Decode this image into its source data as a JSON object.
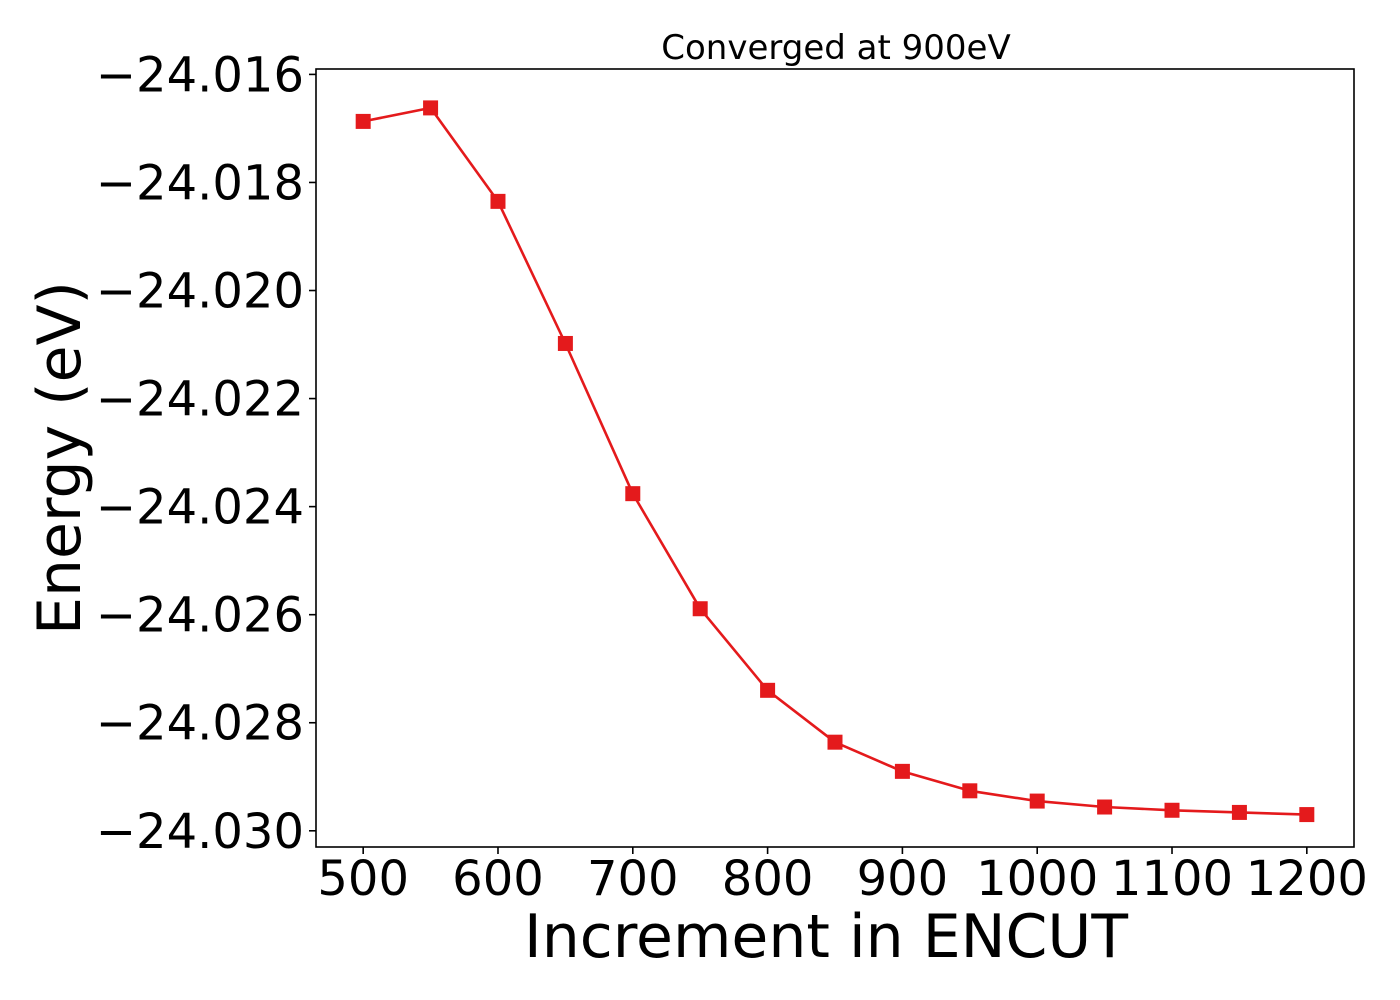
{
  "chart_data": {
    "type": "line",
    "title": "Converged at 900eV",
    "xlabel": "Increment in ENCUT",
    "ylabel": "Energy (eV)",
    "xlim": [
      465,
      1235
    ],
    "ylim": [
      -24.0303,
      -24.0159
    ],
    "x_ticks": [
      {
        "value": 500,
        "label": "500"
      },
      {
        "value": 600,
        "label": "600"
      },
      {
        "value": 700,
        "label": "700"
      },
      {
        "value": 800,
        "label": "800"
      },
      {
        "value": 900,
        "label": "900"
      },
      {
        "value": 1000,
        "label": "1000"
      },
      {
        "value": 1100,
        "label": "1100"
      },
      {
        "value": 1200,
        "label": "1200"
      }
    ],
    "y_ticks": [
      {
        "value": -24.016,
        "label": "−24.016"
      },
      {
        "value": -24.018,
        "label": "−24.018"
      },
      {
        "value": -24.02,
        "label": "−24.020"
      },
      {
        "value": -24.022,
        "label": "−24.022"
      },
      {
        "value": -24.024,
        "label": "−24.024"
      },
      {
        "value": -24.026,
        "label": "−24.026"
      },
      {
        "value": -24.028,
        "label": "−24.028"
      },
      {
        "value": -24.03,
        "label": "−24.030"
      }
    ],
    "grid": false,
    "marker": "square",
    "color": "#e41a1c",
    "series": [
      {
        "x": [
          500,
          550,
          600,
          650,
          700,
          750,
          800,
          850,
          900,
          950,
          1000,
          1050,
          1100,
          1150,
          1200
        ],
        "y": [
          -24.01687,
          -24.01662,
          -24.01835,
          -24.02098,
          -24.02376,
          -24.02589,
          -24.0274,
          -24.02836,
          -24.0289,
          -24.02926,
          -24.02945,
          -24.02956,
          -24.02962,
          -24.02966,
          -24.0297
        ]
      }
    ]
  }
}
